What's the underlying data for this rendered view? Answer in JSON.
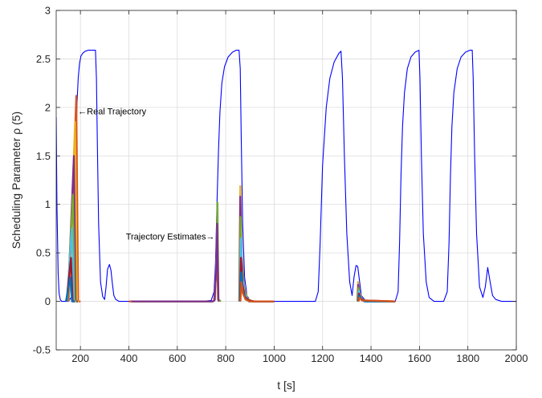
{
  "chart_data": {
    "type": "line",
    "title": "",
    "xlabel": "t [s]",
    "ylabel": "Scheduling Parameter ρ (5)",
    "xlim": [
      100,
      2000
    ],
    "ylim": [
      -0.5,
      3
    ],
    "xticks": [
      200,
      400,
      600,
      800,
      1000,
      1200,
      1400,
      1600,
      1800,
      2000
    ],
    "xtick_labels": [
      "200",
      "400",
      "600",
      "800",
      "1000",
      "1200",
      "1400",
      "1600",
      "1800",
      "2000"
    ],
    "yticks": [
      -0.5,
      0,
      0.5,
      1,
      1.5,
      2,
      2.5,
      3
    ],
    "ytick_labels": [
      "-0.5",
      "0",
      "0.5",
      "1",
      "1.5",
      "2",
      "2.5",
      "3"
    ],
    "grid": true,
    "annotations": [
      {
        "text": "←Real Trajectory",
        "x": 190,
        "y": 1.96
      },
      {
        "text": "Trajectory Estimates→",
        "x": 755,
        "y": 0.67
      }
    ],
    "series": [
      {
        "role": "real",
        "color": "#0000ff",
        "x": [
          100,
          103,
          108,
          112,
          117,
          122,
          128,
          135,
          150,
          165,
          172,
          178,
          182,
          186,
          191,
          196,
          202,
          210,
          220,
          232,
          245,
          262,
          266,
          270,
          275,
          283,
          292,
          300,
          306,
          312,
          320,
          326,
          332,
          338,
          346,
          360,
          400,
          600,
          700,
          740,
          752,
          758,
          764,
          770,
          776,
          784,
          795,
          810,
          828,
          843,
          855,
          860,
          864,
          870,
          878,
          888,
          900,
          930,
          1000,
          1100,
          1170,
          1182,
          1190,
          1200,
          1215,
          1230,
          1248,
          1268,
          1276,
          1282,
          1290,
          1300,
          1312,
          1322,
          1330,
          1338,
          1345,
          1352,
          1360,
          1380,
          1450,
          1500,
          1512,
          1518,
          1524,
          1530,
          1538,
          1550,
          1565,
          1582,
          1598,
          1602,
          1608,
          1616,
          1628,
          1640,
          1660,
          1700,
          1715,
          1722,
          1728,
          1734,
          1742,
          1756,
          1772,
          1790,
          1808,
          1818,
          1822,
          1828,
          1836,
          1848,
          1862,
          1872,
          1882,
          1892,
          1902,
          1915,
          1940,
          2000
        ],
        "y": [
          1.9,
          1.0,
          0.3,
          0.08,
          0.02,
          0.0,
          0.0,
          0.0,
          0.0,
          0.05,
          0.35,
          1.0,
          1.6,
          2.05,
          2.3,
          2.45,
          2.53,
          2.56,
          2.58,
          2.59,
          2.59,
          2.59,
          2.3,
          1.6,
          0.8,
          0.2,
          0.05,
          0.02,
          0.15,
          0.33,
          0.38,
          0.32,
          0.18,
          0.06,
          0.02,
          0.0,
          0.0,
          0.0,
          0.0,
          0.01,
          0.1,
          0.4,
          1.0,
          1.55,
          1.95,
          2.25,
          2.42,
          2.52,
          2.57,
          2.59,
          2.59,
          2.4,
          1.7,
          0.8,
          0.25,
          0.06,
          0.01,
          0.0,
          0.0,
          0.0,
          0.0,
          0.1,
          0.6,
          1.4,
          2.0,
          2.3,
          2.47,
          2.56,
          2.58,
          2.3,
          1.5,
          0.7,
          0.2,
          0.06,
          0.25,
          0.37,
          0.36,
          0.22,
          0.06,
          0.0,
          0.0,
          0.0,
          0.1,
          0.6,
          1.3,
          1.8,
          2.15,
          2.4,
          2.52,
          2.57,
          2.59,
          2.3,
          1.5,
          0.7,
          0.2,
          0.04,
          0.0,
          0.0,
          0.1,
          0.6,
          1.3,
          1.8,
          2.15,
          2.4,
          2.52,
          2.57,
          2.59,
          2.59,
          2.3,
          1.5,
          0.7,
          0.15,
          0.04,
          0.15,
          0.35,
          0.2,
          0.06,
          0.02,
          0.0,
          0.0
        ]
      },
      {
        "role": "estimate",
        "color": "#d95319",
        "x": [
          152,
          183,
          191,
          200
        ],
        "y": [
          0.0,
          2.12,
          0.0,
          0.0
        ]
      },
      {
        "role": "estimate",
        "color": "#edb120",
        "x": [
          150,
          178,
          186,
          195
        ],
        "y": [
          0.0,
          1.85,
          0.0,
          0.0
        ]
      },
      {
        "role": "estimate",
        "color": "#7e2f8e",
        "x": [
          148,
          173,
          180,
          190
        ],
        "y": [
          0.0,
          1.5,
          0.0,
          0.0
        ]
      },
      {
        "role": "estimate",
        "color": "#77ac30",
        "x": [
          146,
          169,
          176,
          185
        ],
        "y": [
          0.0,
          1.1,
          0.0,
          0.0
        ]
      },
      {
        "role": "estimate",
        "color": "#4dbeee",
        "x": [
          144,
          165,
          172,
          180
        ],
        "y": [
          0.0,
          0.75,
          0.0,
          0.0
        ]
      },
      {
        "role": "estimate",
        "color": "#a2142f",
        "x": [
          142,
          161,
          168,
          176
        ],
        "y": [
          0.0,
          0.45,
          0.0,
          0.0
        ]
      },
      {
        "role": "estimate",
        "color": "#0072bd",
        "x": [
          140,
          158,
          165,
          172
        ],
        "y": [
          0.0,
          0.25,
          0.0,
          0.0
        ]
      },
      {
        "role": "estimate",
        "color": "#d95319",
        "x": [
          400,
          745,
          752,
          760,
          764,
          768,
          775
        ],
        "y": [
          0.0,
          0.0,
          0.01,
          0.25,
          0.6,
          0.02,
          0.0
        ]
      },
      {
        "role": "estimate",
        "color": "#77ac30",
        "x": [
          420,
          748,
          756,
          762,
          766,
          770,
          780
        ],
        "y": [
          0.0,
          0.0,
          0.02,
          0.5,
          1.02,
          0.02,
          0.0
        ]
      },
      {
        "role": "estimate",
        "color": "#7e2f8e",
        "x": [
          410,
          746,
          754,
          761,
          765,
          770
        ],
        "y": [
          0.0,
          0.0,
          0.01,
          0.35,
          0.8,
          0.0
        ]
      },
      {
        "role": "estimate",
        "color": "#edb120",
        "x": [
          855,
          860,
          866,
          876,
          890,
          910,
          1000
        ],
        "y": [
          0.0,
          1.19,
          0.5,
          0.15,
          0.03,
          0.0,
          0.0
        ]
      },
      {
        "role": "estimate",
        "color": "#7e2f8e",
        "x": [
          856,
          860,
          866,
          876,
          890,
          910,
          1000
        ],
        "y": [
          0.0,
          1.08,
          0.45,
          0.13,
          0.02,
          0.0,
          0.0
        ]
      },
      {
        "role": "estimate",
        "color": "#77ac30",
        "x": [
          857,
          861,
          867,
          877,
          892,
          912,
          1000
        ],
        "y": [
          0.0,
          0.87,
          0.35,
          0.1,
          0.02,
          0.0,
          0.0
        ]
      },
      {
        "role": "estimate",
        "color": "#4dbeee",
        "x": [
          858,
          862,
          868,
          878,
          893,
          915,
          1000
        ],
        "y": [
          0.0,
          0.65,
          0.27,
          0.08,
          0.01,
          0.0,
          0.0
        ]
      },
      {
        "role": "estimate",
        "color": "#a2142f",
        "x": [
          859,
          863,
          869,
          879,
          895,
          920,
          1000
        ],
        "y": [
          0.0,
          0.45,
          0.18,
          0.05,
          0.01,
          0.0,
          0.0
        ]
      },
      {
        "role": "estimate",
        "color": "#0072bd",
        "x": [
          860,
          864,
          870,
          880,
          896,
          1000
        ],
        "y": [
          0.0,
          0.3,
          0.12,
          0.03,
          0.0,
          0.0
        ]
      },
      {
        "role": "estimate",
        "color": "#d95319",
        "x": [
          861,
          865,
          871,
          882,
          898,
          1000
        ],
        "y": [
          0.0,
          0.2,
          0.08,
          0.02,
          0.0,
          0.0
        ]
      },
      {
        "role": "estimate",
        "color": "#edb120",
        "x": [
          1343,
          1346,
          1352,
          1362,
          1378,
          1400,
          1500
        ],
        "y": [
          0.0,
          0.2,
          0.1,
          0.03,
          0.0,
          0.0,
          0.0
        ]
      },
      {
        "role": "estimate",
        "color": "#7e2f8e",
        "x": [
          1344,
          1347,
          1353,
          1364,
          1380,
          1400,
          1500
        ],
        "y": [
          0.0,
          0.17,
          0.08,
          0.02,
          0.0,
          0.0,
          0.0
        ]
      },
      {
        "role": "estimate",
        "color": "#77ac30",
        "x": [
          1345,
          1348,
          1355,
          1366,
          1382,
          1500
        ],
        "y": [
          0.0,
          0.14,
          0.06,
          0.02,
          0.0,
          0.0
        ]
      },
      {
        "role": "estimate",
        "color": "#4dbeee",
        "x": [
          1346,
          1349,
          1356,
          1368,
          1385,
          1500
        ],
        "y": [
          0.0,
          0.11,
          0.05,
          0.01,
          0.0,
          0.0
        ]
      },
      {
        "role": "estimate",
        "color": "#a2142f",
        "x": [
          1347,
          1350,
          1358,
          1370,
          1500
        ],
        "y": [
          0.0,
          0.08,
          0.03,
          0.01,
          0.0
        ]
      },
      {
        "role": "estimate",
        "color": "#0072bd",
        "x": [
          1348,
          1351,
          1360,
          1372,
          1500
        ],
        "y": [
          0.0,
          0.06,
          0.02,
          0.0,
          0.0
        ]
      },
      {
        "role": "estimate",
        "color": "#d95319",
        "x": [
          1349,
          1352,
          1362,
          1500
        ],
        "y": [
          0.0,
          0.04,
          0.01,
          0.0
        ]
      }
    ]
  }
}
